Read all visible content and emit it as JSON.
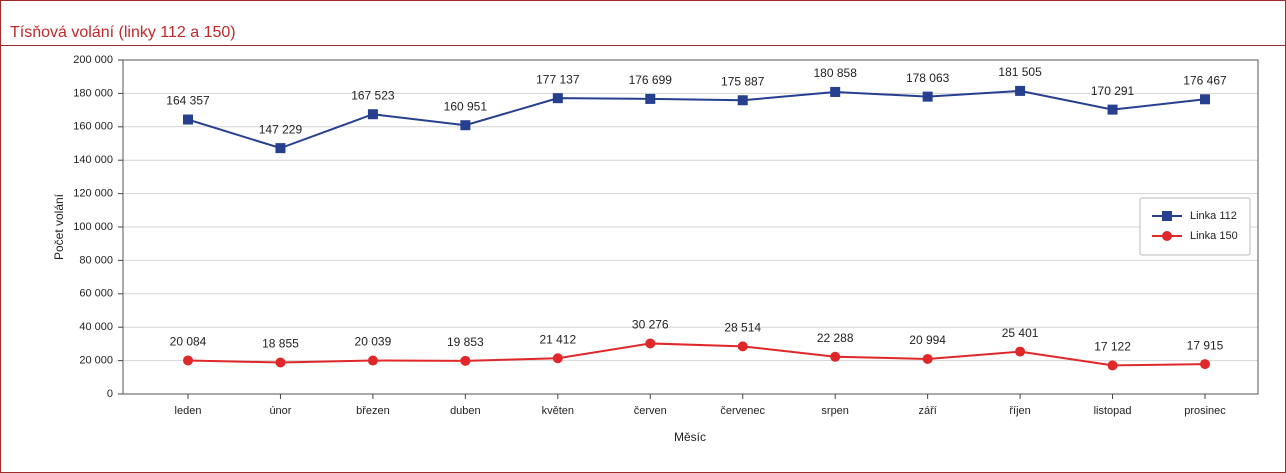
{
  "chart_data": {
    "type": "line",
    "title": "Tísňová volání (linky 112 a 150)",
    "x_label": "Měsíc",
    "y_label": "Počet volání",
    "categories": [
      "leden",
      "únor",
      "březen",
      "duben",
      "květen",
      "červen",
      "červenec",
      "srpen",
      "září",
      "říjen",
      "listopad",
      "prosinec"
    ],
    "series": [
      {
        "name": "Linka 112",
        "color": "#263f8f",
        "marker": "square",
        "values": [
          164357,
          147229,
          167523,
          160951,
          177137,
          176699,
          175887,
          180858,
          178063,
          181505,
          170291,
          176467
        ],
        "value_labels": [
          "164 357",
          "147 229",
          "167 523",
          "160 951",
          "177 137",
          "176 699",
          "175 887",
          "180 858",
          "178 063",
          "181 505",
          "170 291",
          "176 467"
        ]
      },
      {
        "name": "Linka 150",
        "color": "#e0282a",
        "marker": "circle",
        "values": [
          20084,
          18855,
          20039,
          19853,
          21412,
          30276,
          28514,
          22288,
          20994,
          25401,
          17122,
          17915
        ],
        "value_labels": [
          "20 084",
          "18 855",
          "20 039",
          "19 853",
          "21 412",
          "30 276",
          "28 514",
          "22 288",
          "20 994",
          "25 401",
          "17 122",
          "17 915"
        ]
      }
    ],
    "ylim": [
      0,
      200000
    ],
    "yticks": [
      0,
      {
        "value": 20000,
        "label": "20 000"
      },
      {
        "value": 40000,
        "label": "40 000"
      },
      {
        "value": 60000,
        "label": "60 000"
      },
      {
        "value": 80000,
        "label": "80 000"
      },
      {
        "value": 100000,
        "label": "100 000"
      },
      {
        "value": 120000,
        "label": "120 000"
      },
      {
        "value": 140000,
        "label": "140 000"
      },
      {
        "value": 160000,
        "label": "160 000"
      },
      {
        "value": 180000,
        "label": "180 000"
      },
      {
        "value": 200000,
        "label": "200 000"
      }
    ],
    "grid": true,
    "legend": "right"
  }
}
